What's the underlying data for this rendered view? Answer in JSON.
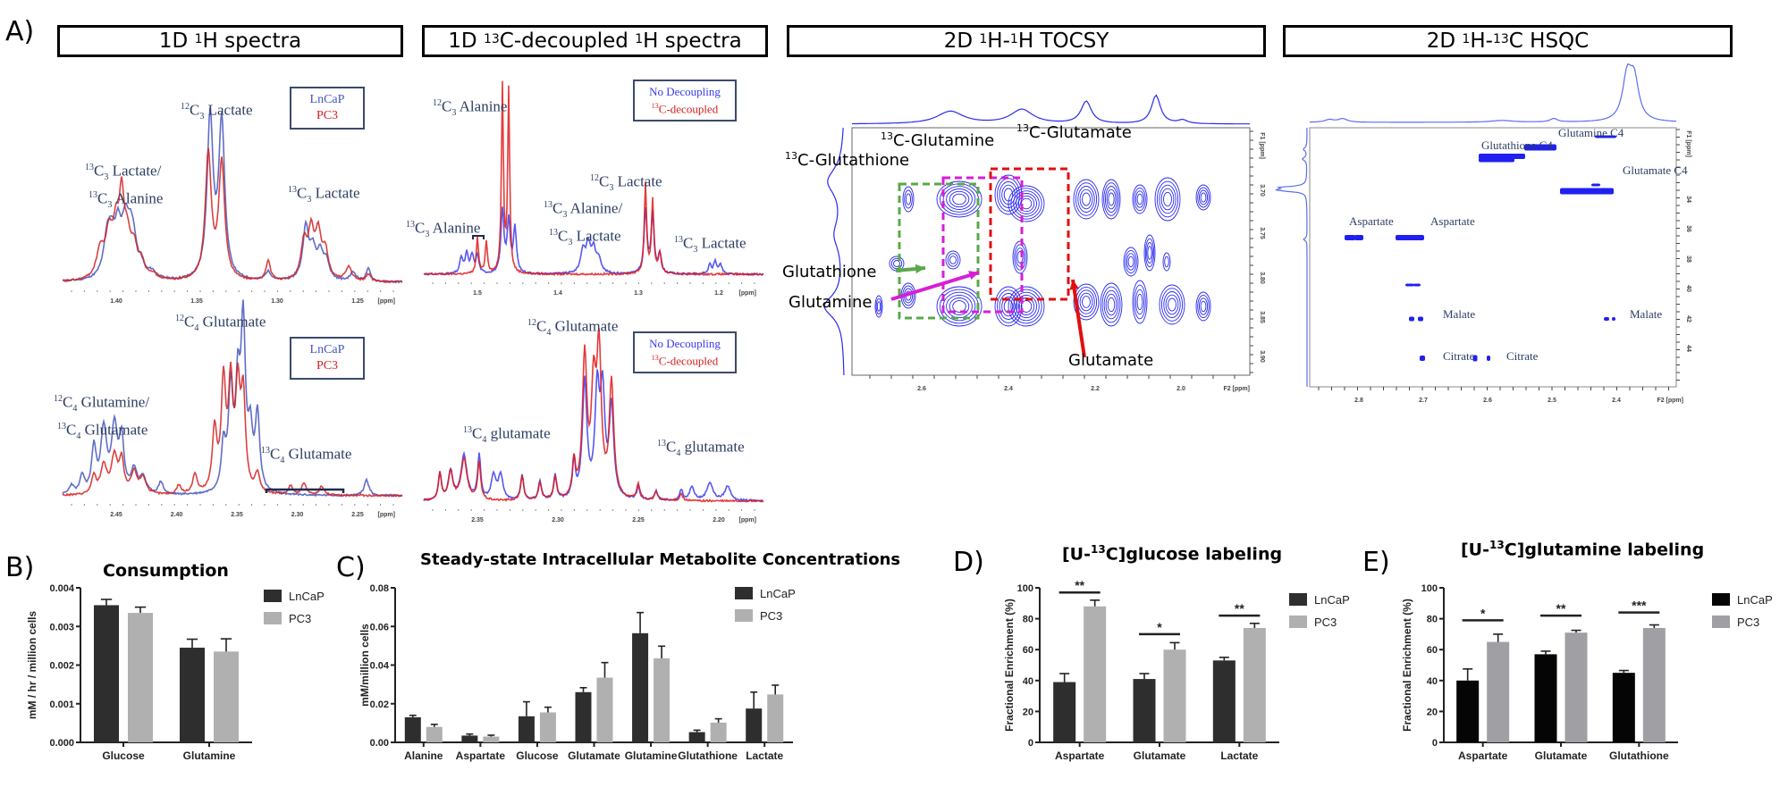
{
  "panel_letters": {
    "a": "A)",
    "b": "B)",
    "c": "C)",
    "d": "D)",
    "e": "E)"
  },
  "section_titles": [
    {
      "pre": "1D ",
      "sup": "1",
      "post": "H spectra"
    },
    {
      "pre": "1D ",
      "sup": "13",
      "mid": "C-decoupled ",
      "sup2": "1",
      "post": "H spectra"
    },
    {
      "pre": "2D ",
      "sup": "1",
      "mid": "H-",
      "sup2": "1",
      "post": "H TOCSY"
    },
    {
      "pre": "2D ",
      "sup": "1",
      "mid": "H-",
      "sup2": "13",
      "post": "C HSQC"
    }
  ],
  "spectra_1h": {
    "top": {
      "legend": [
        "LnCaP",
        "PC3"
      ],
      "labels": {
        "c12_lactate": {
          "sup": "12",
          "sub": "3",
          "name": "Lactate"
        },
        "c13_lac_ala_1": {
          "sup": "13",
          "sub": "3",
          "name": "Lactate/"
        },
        "c13_lac_ala_2": {
          "sup": "13",
          "sub": "3",
          "name": "Alanine"
        },
        "c13_lactate": {
          "sup": "13",
          "sub": "3",
          "name": "Lactate"
        }
      },
      "ticks": [
        "1.40",
        "1.35",
        "1.30",
        "1.25"
      ],
      "unit": "[ppm]"
    },
    "bottom": {
      "legend": [
        "LnCaP",
        "PC3"
      ],
      "labels": {
        "c12_glutamate": {
          "sup": "12",
          "sub": "4",
          "name": "Glutamate"
        },
        "c12_gln_1": {
          "sup": "12",
          "sub": "4",
          "name": "Glutamine/"
        },
        "c13_glu_2": {
          "sup": "13",
          "sub": "4",
          "name": "Glutamate"
        },
        "c13_glutamate": {
          "sup": "13",
          "sub": "4",
          "name": "Glutamate"
        }
      },
      "ticks": [
        "2.45",
        "2.40",
        "2.35",
        "2.30",
        "2.25"
      ],
      "unit": "[ppm]"
    }
  },
  "spectra_decoupled": {
    "top": {
      "legend": [
        "No Decoupling",
        "13",
        "C-decoupled"
      ],
      "labels": {
        "c12_alanine": {
          "sup": "12",
          "sub": "3",
          "name": "Alanine"
        },
        "c13_alanine": {
          "sup": "13",
          "sub": "3",
          "name": "Alanine"
        },
        "c12_lactate": {
          "sup": "12",
          "sub": "3",
          "name": "Lactate"
        },
        "c13_ala_lac_1": {
          "sup": "13",
          "sub": "3",
          "name": "Alanine/"
        },
        "c13_ala_lac_2": {
          "sup": "13",
          "sub": "3",
          "name": "Lactate"
        },
        "c13_lactate": {
          "sup": "13",
          "sub": "3",
          "name": "Lactate"
        }
      },
      "ticks": [
        "1.5",
        "1.4",
        "1.3",
        "1.2"
      ],
      "unit": "[ppm]"
    },
    "bottom": {
      "legend": [
        "No Decoupling",
        "13",
        "C-decoupled"
      ],
      "labels": {
        "c12_glutamate": {
          "sup": "12",
          "sub": "4",
          "name": "Glutamate"
        },
        "c13_glutamate_l": {
          "sup": "13",
          "sub": "4",
          "name": "glutamate"
        },
        "c13_glutamate_r": {
          "sup": "13",
          "sub": "4",
          "name": "glutamate"
        }
      },
      "ticks": [
        "2.35",
        "2.30",
        "2.25",
        "2.20"
      ],
      "unit": "[ppm]"
    }
  },
  "tocsy": {
    "labels": {
      "c13_glutathione": {
        "sup": "13",
        "text": "C-Glutathione",
        "color": "#5aa84a"
      },
      "c13_glutamine": {
        "sup": "13",
        "text": "C-Glutamine",
        "color": "#d61fd6"
      },
      "c13_glutamate": {
        "sup": "13",
        "text": "C-Glutamate",
        "color": "#e01010"
      },
      "glutathione": {
        "text": "Glutathione",
        "color": "#5aa84a"
      },
      "glutamine": {
        "text": "Glutamine",
        "color": "#d61fd6"
      },
      "glutamate": {
        "text": "Glutamate",
        "color": "#e01010"
      }
    },
    "x_ticks": [
      "2.6",
      "2.4",
      "2.2",
      "2.0"
    ],
    "x_unit": "F2 [ppm]",
    "y_ticks": [
      "3.70",
      "3.75",
      "3.80",
      "3.85",
      "3.90"
    ],
    "y_unit": "F1 [ppm]"
  },
  "hsqc": {
    "labels": {
      "glutamine_c4": "Glutamine C4",
      "glutathione_c4": "Glutathione C4",
      "glutamate_c4": "Glutamate C4",
      "aspartate_1": "Aspartate",
      "aspartate_2": "Aspartate",
      "malate_1": "Malate",
      "malate_2": "Malate",
      "citrate_1": "Citrate",
      "citrate_2": "Citrate"
    },
    "x_ticks": [
      "2.8",
      "2.7",
      "2.6",
      "2.5",
      "2.4"
    ],
    "x_unit": "F2 [ppm]",
    "y_ticks": [
      "34",
      "36",
      "38",
      "40",
      "42",
      "44"
    ],
    "y_unit": "F1 [ppm]"
  },
  "chart_data": [
    {
      "id": "B",
      "type": "bar",
      "title": "Consumption",
      "xlabel": "",
      "ylabel": "mM / hr / million cells",
      "ylim": [
        0,
        0.004
      ],
      "yticks": [
        0,
        0.001,
        0.002,
        0.003,
        0.004
      ],
      "ytick_labels": [
        "0.000",
        "0.001",
        "0.002",
        "0.003",
        "0.004"
      ],
      "categories": [
        "Glucose",
        "Glutamine"
      ],
      "series": [
        {
          "name": "LnCaP",
          "color": "#2e2e2e",
          "values": [
            0.00355,
            0.00245
          ],
          "errors": [
            0.00015,
            0.00022
          ]
        },
        {
          "name": "PC3",
          "color": "#b0b0b0",
          "values": [
            0.00335,
            0.00235
          ],
          "errors": [
            0.00015,
            0.00033
          ]
        }
      ],
      "legend": "top-right",
      "grid": false
    },
    {
      "id": "C",
      "type": "bar",
      "title": "Steady-state Intracellular Metabolite Concentrations",
      "xlabel": "",
      "ylabel": "mM/million cells",
      "ylim": [
        0,
        0.08
      ],
      "yticks": [
        0,
        0.02,
        0.04,
        0.06,
        0.08
      ],
      "ytick_labels": [
        "0.00",
        "0.02",
        "0.04",
        "0.06",
        "0.08"
      ],
      "categories": [
        "Alanine",
        "Aspartate",
        "Glucose",
        "Glutamate",
        "Glutamine",
        "Glutathione",
        "Lactate"
      ],
      "series": [
        {
          "name": "LnCaP",
          "color": "#2e2e2e",
          "values": [
            0.013,
            0.0035,
            0.0135,
            0.026,
            0.0565,
            0.0053,
            0.0175
          ],
          "errors": [
            0.001,
            0.0008,
            0.0075,
            0.0023,
            0.0107,
            0.001,
            0.0085
          ]
        },
        {
          "name": "PC3",
          "color": "#b0b0b0",
          "values": [
            0.008,
            0.003,
            0.0155,
            0.0335,
            0.0435,
            0.0102,
            0.0248
          ],
          "errors": [
            0.0013,
            0.0007,
            0.0027,
            0.0078,
            0.0063,
            0.002,
            0.0048
          ]
        }
      ],
      "legend": "top-right",
      "grid": false
    },
    {
      "id": "D",
      "type": "bar",
      "title_pre": "[U-",
      "title_sup": "13",
      "title_post": "C]glucose labeling",
      "xlabel": "",
      "ylabel": "Fractional Enrichment (%)",
      "ylim": [
        0,
        100
      ],
      "yticks": [
        0,
        20,
        40,
        60,
        80,
        100
      ],
      "ytick_labels": [
        "0",
        "20",
        "40",
        "60",
        "80",
        "100"
      ],
      "categories": [
        "Aspartate",
        "Glutamate",
        "Lactate"
      ],
      "series": [
        {
          "name": "LnCaP",
          "color": "#2e2e2e",
          "values": [
            39,
            41,
            53
          ],
          "errors": [
            5.5,
            3.5,
            2
          ]
        },
        {
          "name": "PC3",
          "color": "#b0b0b0",
          "values": [
            88,
            60,
            74
          ],
          "errors": [
            4,
            4.5,
            3
          ]
        }
      ],
      "significance": [
        "**",
        "*",
        "**"
      ],
      "significance_y": [
        97,
        70,
        82
      ],
      "legend": "top-right",
      "grid": false
    },
    {
      "id": "E",
      "type": "bar",
      "title_pre": "[U-",
      "title_sup": "13",
      "title_post": "C]glutamine labeling",
      "xlabel": "",
      "ylabel": "Fractional Enrichment (%)",
      "ylim": [
        0,
        100
      ],
      "yticks": [
        0,
        20,
        40,
        60,
        80,
        100
      ],
      "ytick_labels": [
        "0",
        "20",
        "40",
        "60",
        "80",
        "100"
      ],
      "categories": [
        "Aspartate",
        "Glutamate",
        "Glutathione"
      ],
      "series": [
        {
          "name": "LnCaP",
          "color": "#050505",
          "values": [
            40,
            57,
            45
          ],
          "errors": [
            7.5,
            2,
            1.5
          ]
        },
        {
          "name": "PC3",
          "color": "#a0a0a4",
          "values": [
            65,
            71,
            74
          ],
          "errors": [
            5,
            1.5,
            2
          ]
        }
      ],
      "significance": [
        "*",
        "**",
        "***"
      ],
      "significance_y": [
        79,
        82,
        84
      ],
      "legend": "top-right",
      "grid": false
    }
  ]
}
